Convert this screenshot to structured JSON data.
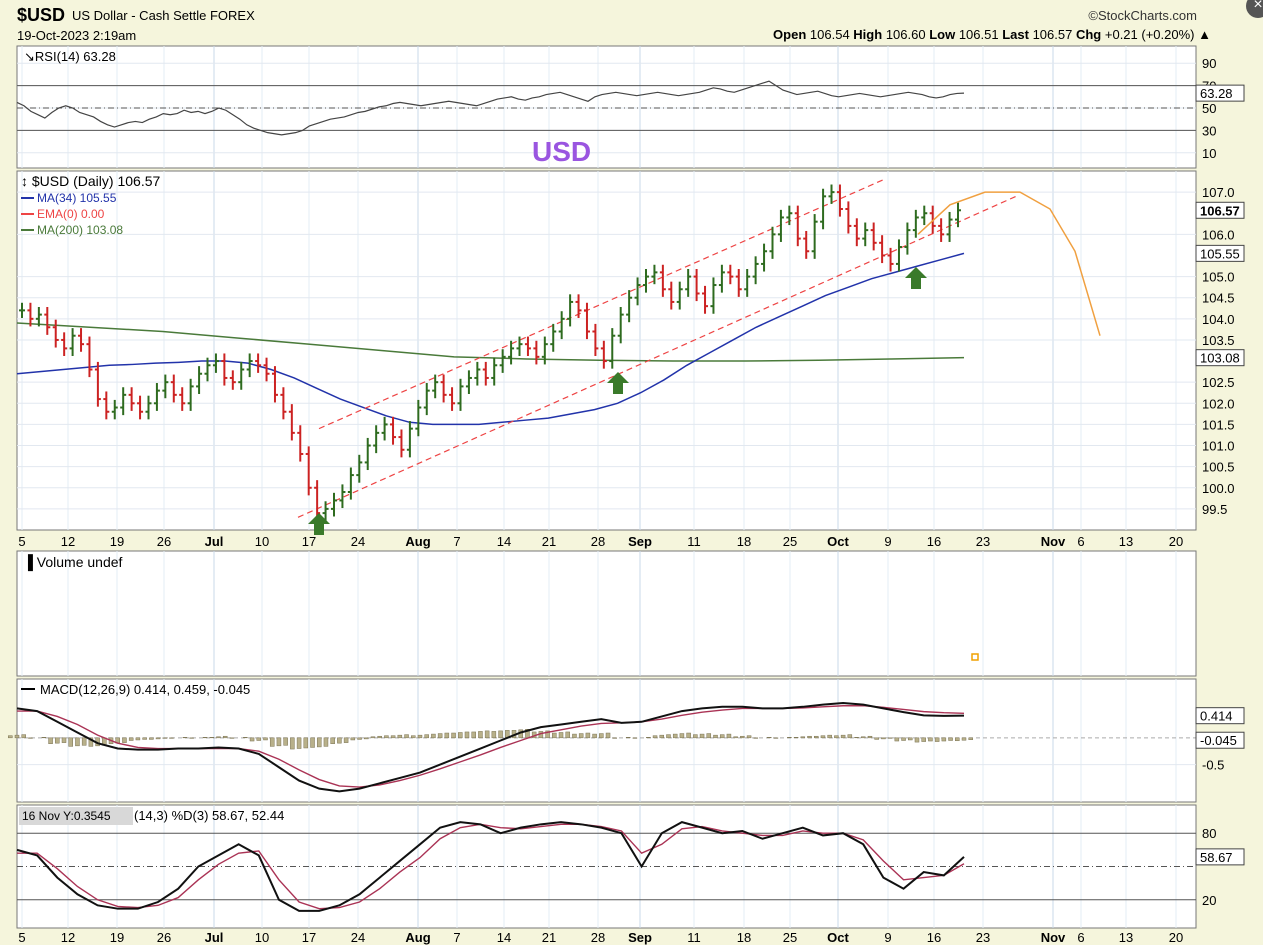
{
  "header": {
    "symbol": "$USD",
    "description": "US Dollar - Cash Settle FOREX",
    "datetime": "19-Oct-2023 2:19am",
    "brand": "StockCharts.com",
    "open_label": "Open",
    "open": "106.54",
    "high_label": "High",
    "high": "106.60",
    "low_label": "Low",
    "low": "106.51",
    "last_label": "Last",
    "last": "106.57",
    "chg_label": "Chg",
    "chg": "+0.21 (+0.20%)"
  },
  "colors": {
    "background": "#f5f5dc",
    "panel": "#ffffff",
    "up": "#2e6b1f",
    "down": "#cc2222",
    "ma34": "#2233aa",
    "ma200": "#4a7a3a",
    "channel": "#ee4444",
    "projection": "#f0a040",
    "arrow": "#3a7a2a",
    "macd": "#111111",
    "signal": "#aa3355",
    "hist": "#b8b08a"
  },
  "annotation": "USD",
  "chart_data": [
    {
      "type": "line",
      "title": "RSI(14) 63.28",
      "ylim": [
        0,
        100
      ],
      "ticks": [
        "90",
        "70",
        "50",
        "30",
        "10"
      ],
      "levels": [
        70,
        30
      ],
      "last_label": "63.28",
      "values": [
        55,
        52,
        47,
        44,
        41,
        46,
        50,
        52,
        50,
        46,
        44,
        42,
        38,
        35,
        33,
        35,
        37,
        38,
        37,
        40,
        42,
        45,
        44,
        45,
        48,
        46,
        47,
        45,
        47,
        50,
        48,
        44,
        40,
        35,
        32,
        30,
        28,
        27,
        26,
        27,
        28,
        30,
        34,
        36,
        38,
        40,
        41,
        42,
        44,
        46,
        47,
        49,
        51,
        52,
        54,
        55,
        54,
        53,
        52,
        53,
        54,
        55,
        56,
        55,
        54,
        53,
        52,
        54,
        56,
        58,
        59,
        60,
        58,
        57,
        59,
        60,
        62,
        63,
        64,
        62,
        60,
        58,
        56,
        60,
        62,
        63,
        64,
        63,
        62,
        61,
        62,
        63,
        64,
        63,
        62,
        61,
        62,
        63,
        64,
        66,
        68,
        67,
        65,
        64,
        66,
        68,
        70,
        72,
        74,
        70,
        66,
        64,
        62,
        63,
        64,
        65,
        63,
        61,
        60,
        61,
        62,
        63,
        62,
        61,
        60,
        61,
        62,
        63,
        64,
        63,
        62,
        60,
        59,
        60,
        62,
        63,
        63.28
      ]
    },
    {
      "type": "ohlc",
      "title": "$USD (Daily) 106.57",
      "ylim": [
        99.0,
        107.5
      ],
      "y_ticks": [
        "107.0",
        "106.0",
        "105.0",
        "104.5",
        "104.0",
        "103.5",
        "102.5",
        "102.0",
        "101.5",
        "101.0",
        "100.5",
        "100.0",
        "99.5"
      ],
      "legend": [
        "MA(34) 105.55",
        "EMA(0) 0.00",
        "MA(200) 103.08"
      ],
      "price_labels": [
        "106.57",
        "105.55",
        "103.08"
      ],
      "x_labels": [
        "5",
        "12",
        "19",
        "26",
        "Jul",
        "10",
        "17",
        "24",
        "Aug",
        "7",
        "14",
        "21",
        "28",
        "Sep",
        "11",
        "18",
        "25",
        "Oct",
        "9",
        "16",
        "23",
        "Nov",
        "6",
        "13",
        "20"
      ],
      "closes": [
        104.2,
        104.0,
        104.1,
        103.8,
        103.5,
        103.3,
        103.6,
        103.4,
        102.8,
        102.1,
        101.8,
        101.9,
        102.2,
        102.0,
        101.8,
        102.0,
        102.3,
        102.5,
        102.2,
        102.0,
        102.4,
        102.7,
        102.9,
        103.0,
        102.6,
        102.5,
        102.8,
        103.0,
        102.9,
        102.7,
        102.2,
        101.8,
        101.3,
        100.8,
        100.0,
        99.4,
        99.5,
        99.7,
        99.9,
        100.3,
        100.6,
        101.0,
        101.3,
        101.5,
        101.2,
        100.9,
        101.4,
        101.9,
        102.3,
        102.5,
        102.2,
        102.0,
        102.4,
        102.6,
        102.8,
        102.6,
        102.9,
        103.1,
        103.3,
        103.4,
        103.3,
        103.1,
        103.4,
        103.7,
        104.0,
        104.4,
        104.2,
        103.7,
        103.3,
        103.0,
        103.6,
        104.1,
        104.5,
        104.8,
        105.0,
        105.1,
        104.7,
        104.4,
        104.7,
        105.0,
        104.6,
        104.3,
        104.8,
        105.1,
        105.0,
        104.7,
        105.0,
        105.3,
        105.6,
        106.0,
        106.4,
        106.5,
        105.9,
        105.6,
        106.3,
        106.9,
        107.0,
        106.6,
        106.2,
        105.9,
        106.1,
        105.8,
        105.5,
        105.3,
        105.7,
        106.1,
        106.4,
        106.5,
        106.2,
        106.0,
        106.35,
        106.57
      ],
      "ma34": [
        102.7,
        102.75,
        102.8,
        102.85,
        102.9,
        102.92,
        102.95,
        102.97,
        103.0,
        103.0,
        102.95,
        102.8,
        102.6,
        102.35,
        102.1,
        101.9,
        101.7,
        101.55,
        101.5,
        101.5,
        101.5,
        101.55,
        101.6,
        101.65,
        101.75,
        101.85,
        102.0,
        102.25,
        102.55,
        102.9,
        103.2,
        103.5,
        103.8,
        104.05,
        104.3,
        104.55,
        104.75,
        104.95,
        105.1,
        105.25,
        105.4,
        105.55
      ],
      "ma200": [
        103.9,
        103.8,
        103.7,
        103.55,
        103.4,
        103.25,
        103.1,
        103.05,
        103.02,
        103.0,
        103.0,
        103.02,
        103.05,
        103.08
      ],
      "channel_upper": [
        [
          101.4,
          107.3
        ]
      ],
      "channel_lower": [
        [
          99.3,
          106.9
        ]
      ],
      "projection": [
        106.0,
        106.7,
        107.0,
        107.0,
        106.6,
        105.6,
        103.6
      ]
    },
    {
      "type": "bar",
      "title": "Volume undef",
      "values": []
    },
    {
      "type": "line",
      "title": "MACD(12,26,9) 0.414, 0.459, -0.045",
      "ylim": [
        -1.2,
        1.1
      ],
      "y_ticks": [
        "0.414",
        "-0.045",
        "-0.5"
      ],
      "series": [
        {
          "name": "MACD",
          "values": [
            0.55,
            0.5,
            0.3,
            0.1,
            -0.1,
            -0.2,
            -0.22,
            -0.22,
            -0.2,
            -0.2,
            -0.18,
            -0.2,
            -0.3,
            -0.55,
            -0.8,
            -0.95,
            -1.0,
            -0.95,
            -0.85,
            -0.75,
            -0.65,
            -0.5,
            -0.35,
            -0.2,
            -0.05,
            0.1,
            0.2,
            0.25,
            0.3,
            0.35,
            0.28,
            0.3,
            0.4,
            0.5,
            0.55,
            0.58,
            0.58,
            0.55,
            0.55,
            0.58,
            0.62,
            0.65,
            0.62,
            0.55,
            0.48,
            0.42,
            0.41,
            0.414
          ]
        },
        {
          "name": "Signal",
          "values": [
            0.5,
            0.5,
            0.4,
            0.25,
            0.05,
            -0.1,
            -0.18,
            -0.2,
            -0.2,
            -0.2,
            -0.2,
            -0.2,
            -0.25,
            -0.4,
            -0.6,
            -0.78,
            -0.9,
            -0.92,
            -0.88,
            -0.8,
            -0.7,
            -0.58,
            -0.45,
            -0.32,
            -0.18,
            -0.05,
            0.08,
            0.15,
            0.22,
            0.27,
            0.28,
            0.3,
            0.35,
            0.42,
            0.48,
            0.52,
            0.55,
            0.55,
            0.55,
            0.56,
            0.58,
            0.6,
            0.6,
            0.57,
            0.53,
            0.49,
            0.47,
            0.459
          ]
        },
        {
          "name": "Histogram",
          "values": [
            0.05,
            0.0,
            -0.1,
            -0.15,
            -0.15,
            -0.1,
            -0.04,
            -0.02,
            0.0,
            0.0,
            0.02,
            0.0,
            -0.05,
            -0.15,
            -0.2,
            -0.17,
            -0.1,
            -0.03,
            0.03,
            0.05,
            0.05,
            0.08,
            0.1,
            0.12,
            0.13,
            0.15,
            0.12,
            0.1,
            0.08,
            0.08,
            0.0,
            0.0,
            0.05,
            0.08,
            0.07,
            0.06,
            0.03,
            0.0,
            0.0,
            0.02,
            0.04,
            0.05,
            0.02,
            -0.02,
            -0.05,
            -0.07,
            -0.06,
            -0.045
          ]
        }
      ]
    },
    {
      "type": "line",
      "title": "(14,3) %D(3) 58.67, 52.44",
      "tooltip": "16 Nov Y:0.3545",
      "ylim": [
        0,
        100
      ],
      "levels": [
        80,
        20
      ],
      "y_ticks": [
        "80",
        "58.67",
        "20"
      ],
      "series": [
        {
          "name": "%K",
          "values": [
            65,
            60,
            40,
            25,
            15,
            12,
            12,
            18,
            30,
            50,
            60,
            70,
            60,
            20,
            10,
            10,
            15,
            25,
            40,
            55,
            70,
            85,
            90,
            88,
            80,
            85,
            88,
            90,
            88,
            85,
            80,
            50,
            80,
            90,
            85,
            80,
            82,
            75,
            80,
            85,
            78,
            80,
            70,
            40,
            30,
            45,
            42,
            58.67
          ]
        },
        {
          "name": "%D",
          "values": [
            62,
            62,
            48,
            32,
            20,
            14,
            13,
            15,
            22,
            38,
            52,
            62,
            64,
            38,
            18,
            12,
            13,
            18,
            30,
            45,
            58,
            75,
            85,
            88,
            85,
            84,
            86,
            88,
            88,
            86,
            82,
            62,
            70,
            84,
            86,
            82,
            80,
            78,
            78,
            82,
            80,
            80,
            74,
            55,
            38,
            40,
            42,
            52.44
          ]
        }
      ]
    }
  ],
  "bottom_axis": [
    "5",
    "12",
    "19",
    "26",
    "Jul",
    "10",
    "17",
    "24",
    "Aug",
    "7",
    "14",
    "21",
    "28",
    "Sep",
    "11",
    "18",
    "25",
    "Oct",
    "9",
    "16",
    "23",
    "Nov",
    "6",
    "13",
    "20"
  ]
}
